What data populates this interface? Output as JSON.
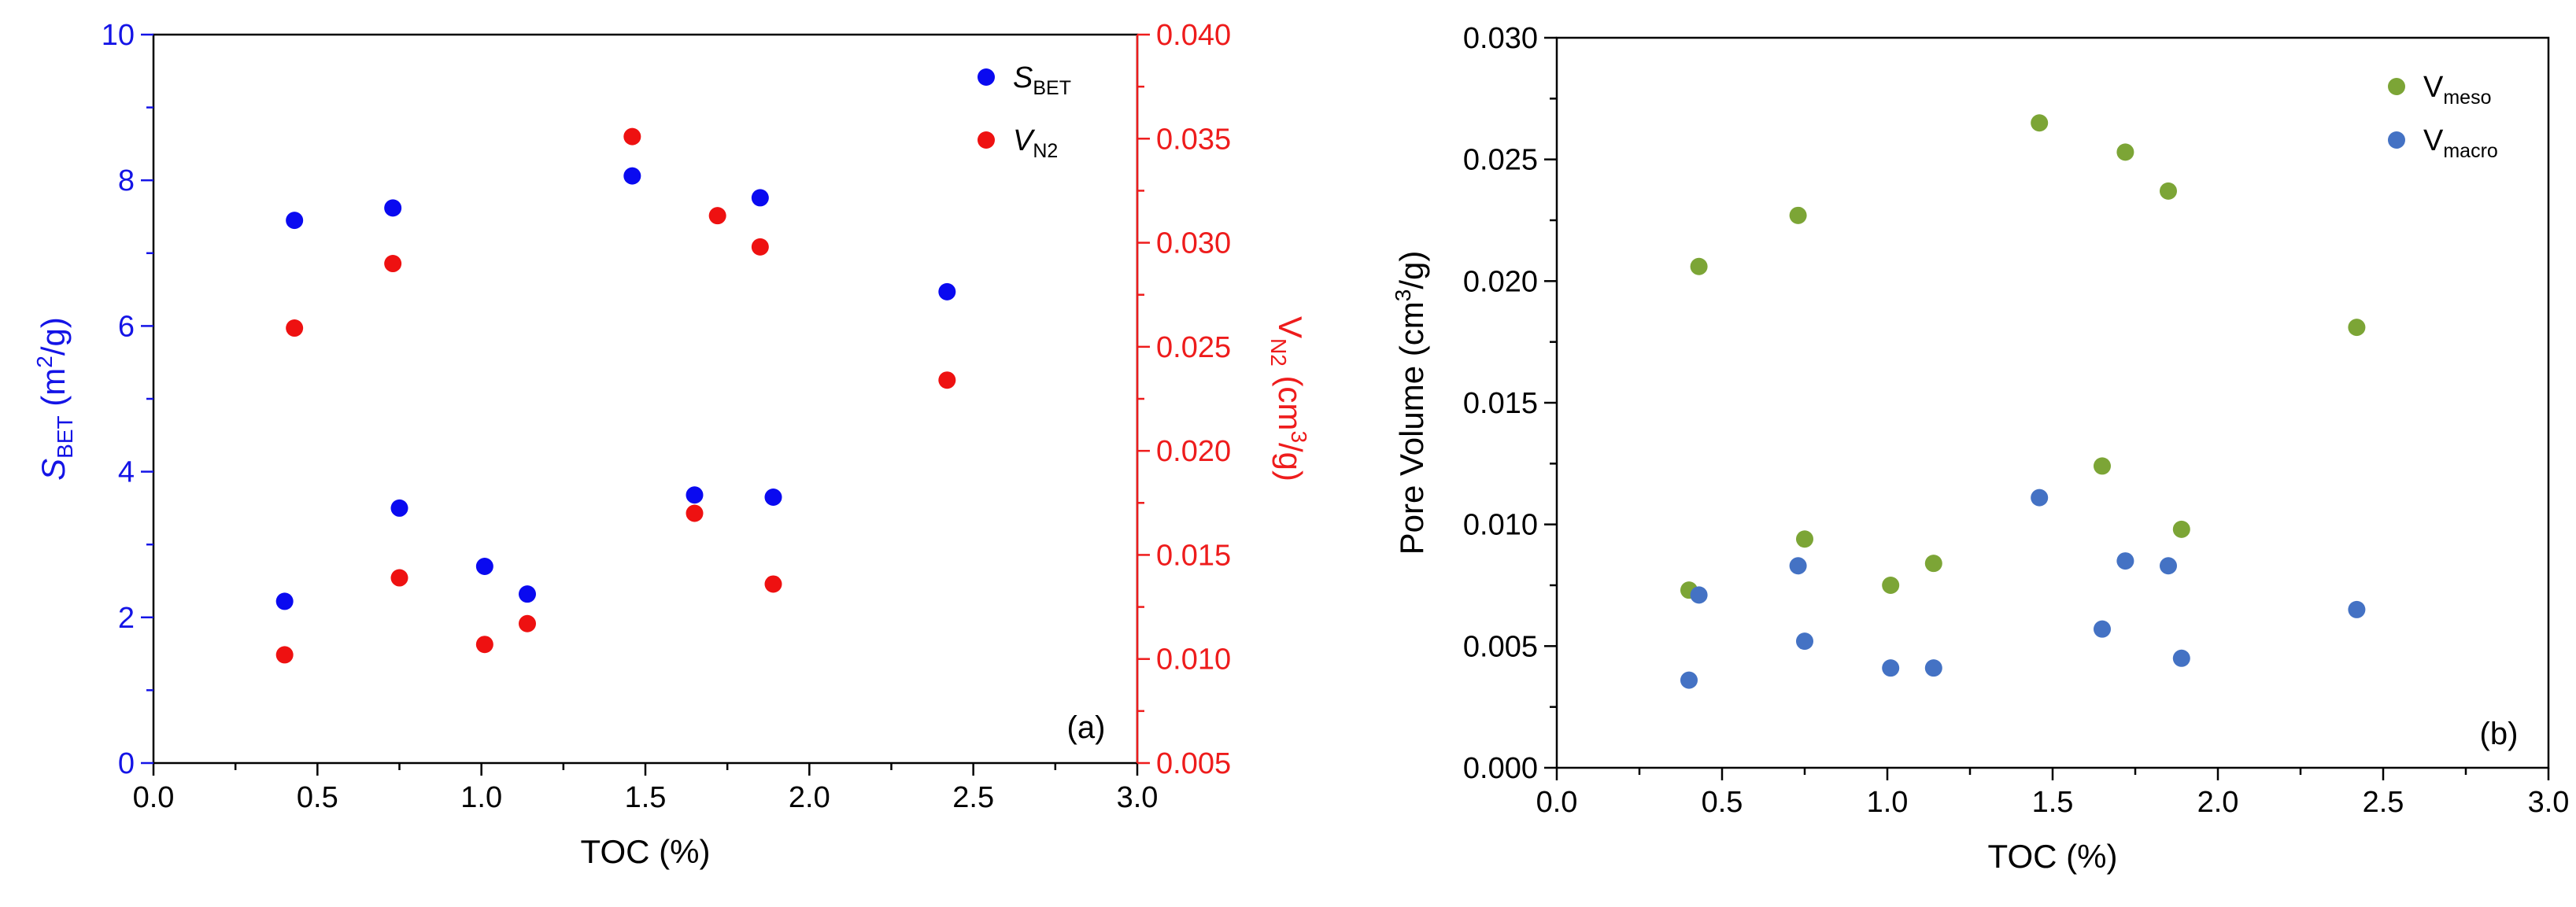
{
  "chart_data": [
    {
      "type": "scatter",
      "panel_label": "(a)",
      "xlabel": "TOC (%)",
      "xlim": [
        0.0,
        3.0
      ],
      "x_ticks": [
        "0.0",
        "0.5",
        "1.0",
        "1.5",
        "2.0",
        "2.5",
        "3.0"
      ],
      "y_left": {
        "label_main": "S",
        "label_sub": "BET",
        "label_tail": " (m",
        "label_sup": "2",
        "label_end": "/g)",
        "lim": [
          0,
          10
        ],
        "ticks": [
          "0",
          "2",
          "4",
          "6",
          "8",
          "10"
        ],
        "color": "#1414e6"
      },
      "y_right": {
        "label_main": "V",
        "label_sub": "N2",
        "label_tail": " (cm",
        "label_sup": "3",
        "label_end": "/g)",
        "lim": [
          0.005,
          0.04
        ],
        "ticks": [
          "0.005",
          "0.010",
          "0.015",
          "0.020",
          "0.025",
          "0.030",
          "0.035",
          "0.040"
        ],
        "color": "#ee1c1c"
      },
      "series": [
        {
          "name_main": "S",
          "name_sub": "BET",
          "axis": "left",
          "color": "#0a0af0",
          "x": [
            0.4,
            0.43,
            0.73,
            0.75,
            1.01,
            1.14,
            1.46,
            1.65,
            1.85,
            1.89,
            2.42
          ],
          "y": [
            2.22,
            7.45,
            7.62,
            3.5,
            2.7,
            2.32,
            8.06,
            3.68,
            7.76,
            3.65,
            6.47
          ]
        },
        {
          "name_main": "V",
          "name_sub": "N2",
          "axis": "right",
          "color": "#ee1111",
          "x": [
            0.4,
            0.43,
            0.73,
            0.75,
            1.01,
            1.14,
            1.46,
            1.65,
            1.72,
            1.85,
            1.89,
            2.42
          ],
          "y": [
            0.0102,
            0.0259,
            0.029,
            0.0139,
            0.0107,
            0.0117,
            0.0351,
            0.017,
            0.0313,
            0.0298,
            0.0136,
            0.0234
          ]
        }
      ]
    },
    {
      "type": "scatter",
      "panel_label": "(b)",
      "xlabel": "TOC (%)",
      "xlim": [
        0.0,
        3.0
      ],
      "x_ticks": [
        "0.0",
        "0.5",
        "1.0",
        "1.5",
        "2.0",
        "2.5",
        "3.0"
      ],
      "y_left": {
        "label_main": "Pore Volume (cm",
        "label_sup": "3",
        "label_end": "/g)",
        "lim": [
          0.0,
          0.03
        ],
        "ticks": [
          "0.000",
          "0.005",
          "0.010",
          "0.015",
          "0.020",
          "0.025",
          "0.030"
        ],
        "color": "#000000"
      },
      "series": [
        {
          "name_main": "V",
          "name_sub": "meso",
          "color": "#7ca536",
          "x": [
            0.4,
            0.43,
            0.73,
            0.75,
            1.01,
            1.14,
            1.46,
            1.65,
            1.72,
            1.85,
            1.89,
            2.42
          ],
          "y": [
            0.0073,
            0.0206,
            0.0227,
            0.0094,
            0.0075,
            0.0084,
            0.0265,
            0.0124,
            0.0253,
            0.0237,
            0.0098,
            0.0181
          ]
        },
        {
          "name_main": "V",
          "name_sub": "macro",
          "color": "#4472c4",
          "x": [
            0.4,
            0.43,
            0.73,
            0.75,
            1.01,
            1.14,
            1.46,
            1.65,
            1.72,
            1.85,
            1.89,
            2.42
          ],
          "y": [
            0.0036,
            0.0071,
            0.0083,
            0.0052,
            0.0041,
            0.0041,
            0.0111,
            0.0057,
            0.0085,
            0.0083,
            0.0045,
            0.0065
          ]
        }
      ]
    }
  ]
}
